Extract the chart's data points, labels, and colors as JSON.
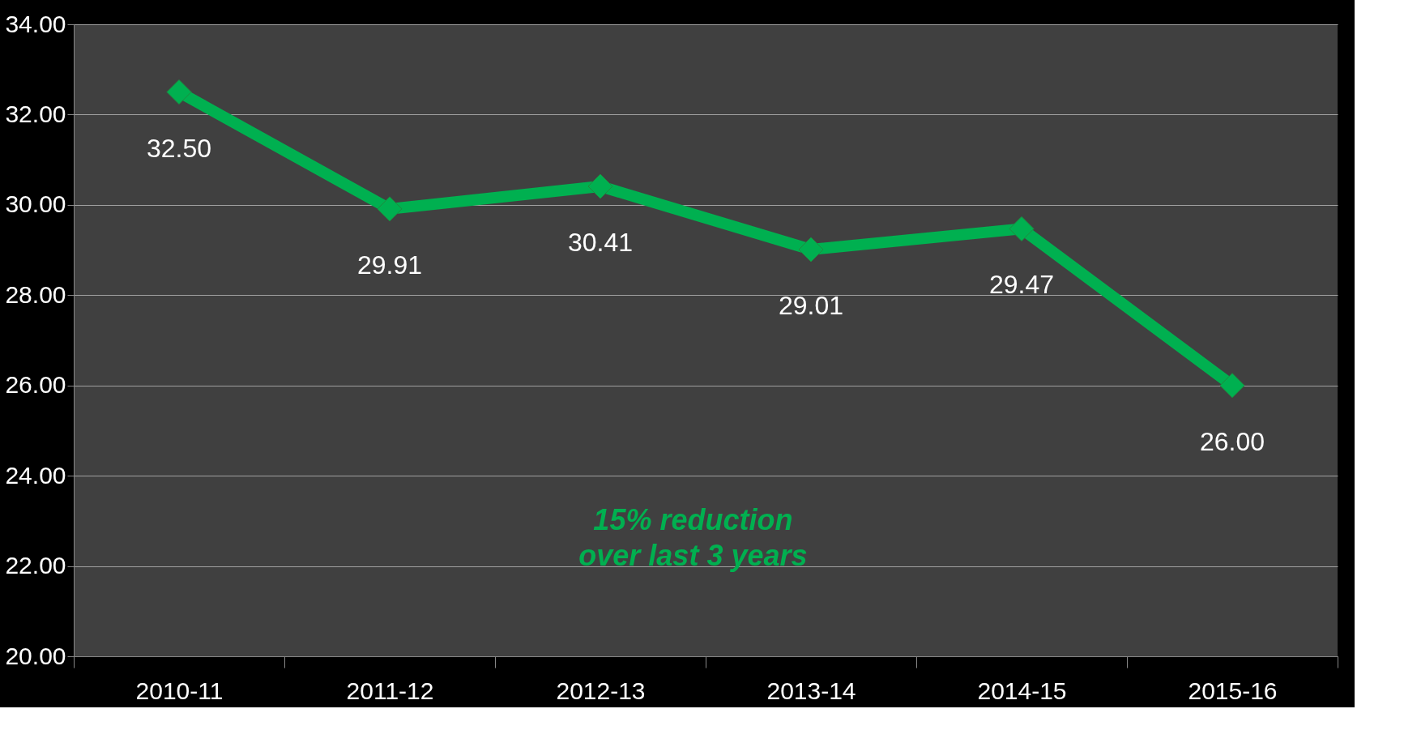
{
  "chart_data": {
    "type": "line",
    "categories": [
      "2010-11",
      "2011-12",
      "2012-13",
      "2013-14",
      "2014-15",
      "2015-16"
    ],
    "series": [
      {
        "color": "#00b050",
        "values": [
          32.5,
          29.91,
          30.41,
          29.01,
          29.47,
          26.0
        ],
        "value_labels": [
          "32.50",
          "29.91",
          "30.41",
          "29.01",
          "29.47",
          "26.00"
        ]
      }
    ],
    "ylim": [
      20,
      34
    ],
    "yticks": [
      {
        "value": 20,
        "label": "20.00"
      },
      {
        "value": 22,
        "label": "22.00"
      },
      {
        "value": 24,
        "label": "24.00"
      },
      {
        "value": 26,
        "label": "26.00"
      },
      {
        "value": 28,
        "label": "28.00"
      },
      {
        "value": 30,
        "label": "30.00"
      },
      {
        "value": 32,
        "label": "32.00"
      },
      {
        "value": 34,
        "label": "34.00"
      }
    ],
    "grid": "y",
    "marker": "diamond",
    "line_style": "solid",
    "annotations": [
      "15% reduction\nover last 3 years"
    ]
  }
}
